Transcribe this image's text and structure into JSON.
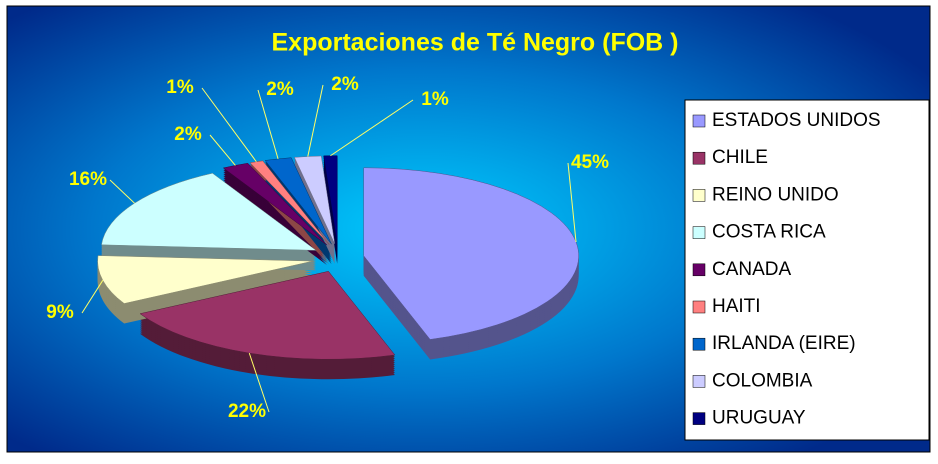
{
  "chart_data": {
    "type": "pie",
    "title": "Exportaciones de Té Negro (FOB )",
    "categories": [
      "ESTADOS UNIDOS",
      "CHILE",
      "REINO UNIDO",
      "COSTA RICA",
      "CANADA",
      "HAITI",
      "IRLANDA (EIRE)",
      "COLOMBIA",
      "URUGUAY"
    ],
    "values": [
      45,
      22,
      9,
      16,
      2,
      1,
      2,
      2,
      1
    ],
    "value_labels": [
      "45%",
      "22%",
      "9%",
      "16%",
      "2%",
      "1%",
      "2%",
      "2%",
      "1%"
    ],
    "colors": [
      "#9999ff",
      "#993366",
      "#ffffcc",
      "#ccffff",
      "#660066",
      "#ff8080",
      "#0066cc",
      "#ccccff",
      "#000080"
    ],
    "legend": "right"
  }
}
